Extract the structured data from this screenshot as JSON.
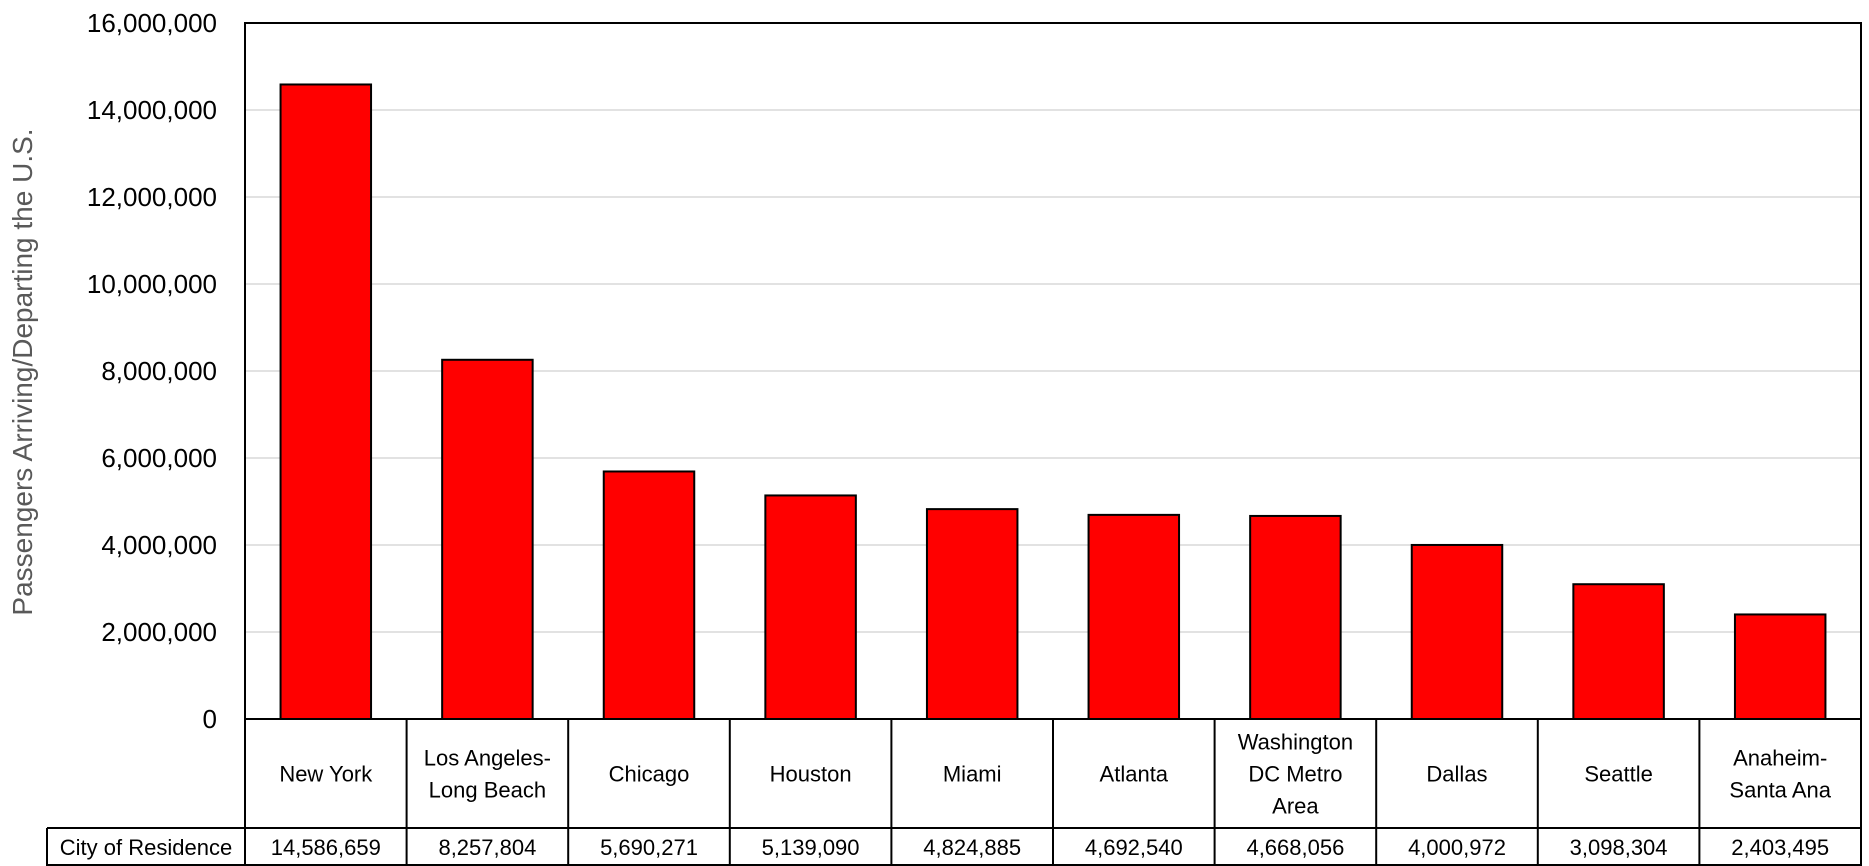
{
  "chart_data": {
    "type": "bar",
    "ylabel": "Passengers Arriving/Departing the U.S.",
    "xlabel": "",
    "ylim": [
      0,
      16000000
    ],
    "yticks": [
      0,
      2000000,
      4000000,
      6000000,
      8000000,
      10000000,
      12000000,
      14000000,
      16000000
    ],
    "ytick_labels": [
      "0",
      "2,000,000",
      "4,000,000",
      "6,000,000",
      "8,000,000",
      "10,000,000",
      "12,000,000",
      "14,000,000",
      "16,000,000"
    ],
    "grid": true,
    "categories": [
      [
        "New York"
      ],
      [
        "Los Angeles-",
        "Long Beach"
      ],
      [
        "Chicago"
      ],
      [
        "Houston"
      ],
      [
        "Miami"
      ],
      [
        "Atlanta"
      ],
      [
        "Washington",
        "DC Metro",
        "Area"
      ],
      [
        "Dallas"
      ],
      [
        "Seattle"
      ],
      [
        "Anaheim-",
        "Santa Ana"
      ]
    ],
    "series": [
      {
        "name": "City of Residence",
        "color": "#ff0000",
        "values": [
          14586659,
          8257804,
          5690271,
          5139090,
          4824885,
          4692540,
          4668056,
          4000972,
          3098304,
          2403495
        ],
        "value_labels": [
          "14,586,659",
          "8,257,804",
          "5,690,271",
          "5,139,090",
          "4,824,885",
          "4,692,540",
          "4,668,056",
          "4,000,972",
          "3,098,304",
          "2,403,495"
        ]
      }
    ],
    "data_table": true
  }
}
